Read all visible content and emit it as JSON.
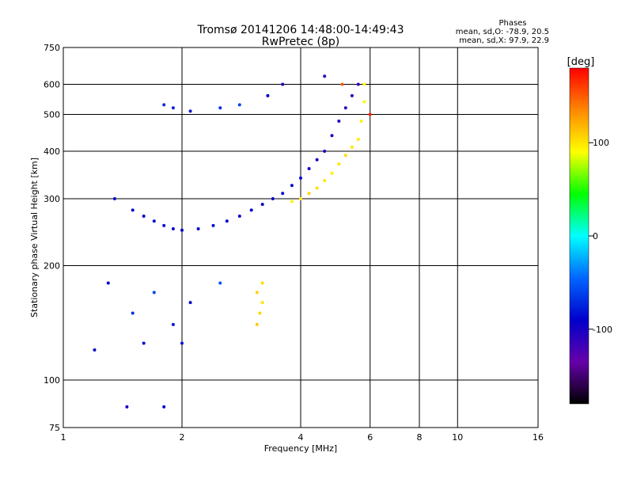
{
  "title_line1": "Tromsø 20141206 14:48:00-14:49:43",
  "title_line2": "RwPretec (8p)",
  "phase_header": "Phases",
  "phase_stats_o": "mean, sd,O: -78.9, 20.5",
  "phase_stats_x": "mean, sd,X:  97.9, 22.9",
  "chart_data": {
    "type": "scatter",
    "xlabel": "Frequency [MHz]",
    "ylabel": "Stationary phase Virtual Height [km]",
    "x_scale": "log",
    "y_scale": "log",
    "xlim": [
      1,
      16
    ],
    "ylim": [
      75,
      750
    ],
    "x_ticks": [
      1,
      2,
      4,
      6,
      8,
      10,
      16
    ],
    "x_tick_labels": [
      "1",
      "2",
      "4",
      "6",
      "8",
      "10",
      "16"
    ],
    "y_ticks": [
      75,
      100,
      200,
      300,
      400,
      500,
      600,
      750
    ],
    "y_tick_labels": [
      "75",
      "100",
      "200",
      "300",
      "400",
      "500",
      "600",
      "750"
    ],
    "grid": true,
    "colorbar": {
      "label": "[deg]",
      "range": [
        -180,
        180
      ],
      "ticks": [
        100,
        0,
        -100
      ],
      "tick_labels": [
        "100",
        "0",
        "-100"
      ],
      "colors": [
        "#ff0000",
        "#ff8800",
        "#ffff00",
        "#00ff00",
        "#00ffff",
        "#0066ff",
        "#0000cc",
        "#6600aa",
        "#000000"
      ]
    },
    "series": [
      {
        "mode": "O",
        "phase_mean": -78.9,
        "points": [
          [
            1.35,
            300,
            -95
          ],
          [
            1.5,
            280,
            -90
          ],
          [
            1.6,
            270,
            -88
          ],
          [
            1.7,
            262,
            -85
          ],
          [
            1.8,
            255,
            -86
          ],
          [
            1.9,
            250,
            -88
          ],
          [
            2.0,
            248,
            -90
          ],
          [
            2.2,
            250,
            -87
          ],
          [
            2.4,
            255,
            -85
          ],
          [
            2.6,
            262,
            -88
          ],
          [
            2.8,
            270,
            -90
          ],
          [
            3.0,
            280,
            -92
          ],
          [
            3.2,
            290,
            -95
          ],
          [
            3.4,
            300,
            -93
          ],
          [
            3.6,
            310,
            -90
          ],
          [
            3.8,
            325,
            -92
          ],
          [
            4.0,
            340,
            -95
          ],
          [
            4.2,
            360,
            -97
          ],
          [
            4.4,
            380,
            -99
          ],
          [
            4.6,
            400,
            -101
          ],
          [
            4.8,
            440,
            -103
          ],
          [
            5.0,
            480,
            -105
          ],
          [
            5.2,
            520,
            -108
          ],
          [
            5.4,
            560,
            -110
          ],
          [
            5.6,
            600,
            -112
          ],
          [
            1.8,
            530,
            -70
          ],
          [
            1.9,
            520,
            -75
          ],
          [
            2.1,
            510,
            -80
          ],
          [
            2.5,
            520,
            -70
          ],
          [
            2.8,
            530,
            -60
          ],
          [
            3.3,
            560,
            -90
          ],
          [
            3.6,
            600,
            -100
          ],
          [
            4.6,
            630,
            -110
          ],
          [
            1.3,
            180,
            -90
          ],
          [
            1.5,
            150,
            -70
          ],
          [
            1.7,
            170,
            -60
          ],
          [
            1.9,
            140,
            -80
          ],
          [
            2.1,
            160,
            -90
          ],
          [
            2.5,
            180,
            -55
          ],
          [
            1.2,
            120,
            -95
          ],
          [
            1.6,
            125,
            -85
          ],
          [
            2.0,
            125,
            -80
          ],
          [
            1.45,
            85,
            -100
          ],
          [
            1.8,
            85,
            -90
          ]
        ]
      },
      {
        "mode": "X",
        "phase_mean": 97.9,
        "points": [
          [
            3.8,
            295,
            95
          ],
          [
            4.0,
            300,
            100
          ],
          [
            4.2,
            310,
            105
          ],
          [
            4.4,
            320,
            102
          ],
          [
            4.6,
            335,
            98
          ],
          [
            4.8,
            350,
            96
          ],
          [
            5.0,
            370,
            100
          ],
          [
            5.2,
            390,
            103
          ],
          [
            5.4,
            410,
            100
          ],
          [
            5.6,
            430,
            97
          ],
          [
            5.7,
            480,
            95
          ],
          [
            5.8,
            540,
            92
          ],
          [
            5.8,
            600,
            90
          ],
          [
            3.1,
            140,
            110
          ],
          [
            3.15,
            150,
            105
          ],
          [
            3.2,
            160,
            100
          ],
          [
            3.1,
            170,
            108
          ],
          [
            3.2,
            180,
            102
          ],
          [
            5.1,
            600,
            150
          ],
          [
            6.0,
            500,
            170
          ]
        ]
      }
    ]
  }
}
